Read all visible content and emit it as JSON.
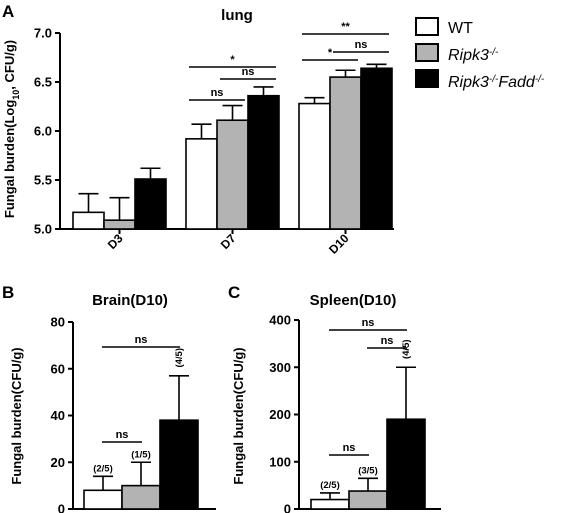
{
  "figure": {
    "panels": [
      "A",
      "B",
      "C"
    ],
    "legend": [
      {
        "name": "WT",
        "sup": [],
        "color": "#ffffff"
      },
      {
        "name": "Ripk3",
        "sup": [
          "-/-"
        ],
        "italic": true,
        "color": "#b3b3b3"
      },
      {
        "name": "Ripk3",
        "name2": "Fadd",
        "sup": [
          "-/-",
          "-/-"
        ],
        "italic": true,
        "color": "#000000"
      }
    ]
  },
  "chart_data": [
    {
      "panel": "A",
      "type": "bar",
      "title": "lung",
      "ylabel": "Fungal burden(Log10, CFU/g)",
      "ylabel_parts": [
        "Fungal burden(Log",
        "10",
        ", CFU/g)"
      ],
      "ylim": [
        5.0,
        7.0
      ],
      "yticks": [
        5.0,
        5.5,
        6.0,
        6.5,
        7.0
      ],
      "ytick_labels": [
        "5.0",
        "5.5",
        "6.0",
        "6.5",
        "7.0"
      ],
      "categories": [
        "D3",
        "D7",
        "D10"
      ],
      "series": [
        {
          "name": "WT",
          "values": [
            5.17,
            5.92,
            6.28
          ],
          "errors": [
            0.19,
            0.15,
            0.06
          ]
        },
        {
          "name": "Ripk3-/-",
          "values": [
            5.09,
            6.11,
            6.55
          ],
          "errors": [
            0.23,
            0.15,
            0.07
          ]
        },
        {
          "name": "Ripk3-/-Fadd-/-",
          "values": [
            5.51,
            6.36,
            6.64
          ],
          "errors": [
            0.11,
            0.09,
            0.04
          ]
        }
      ],
      "significance": [
        {
          "category": 1,
          "from": 0,
          "to": 2,
          "label": "*"
        },
        {
          "category": 1,
          "from": 0,
          "to": 1,
          "label": "ns"
        },
        {
          "category": 1,
          "from": 1,
          "to": 2,
          "label": "ns"
        },
        {
          "category": 2,
          "from": 0,
          "to": 2,
          "label": "**"
        },
        {
          "category": 2,
          "from": 0,
          "to": 1,
          "label": "*"
        },
        {
          "category": 2,
          "from": 1,
          "to": 2,
          "label": "ns"
        }
      ]
    },
    {
      "panel": "B",
      "type": "bar",
      "title": "Brain(D10)",
      "ylabel": "Fungal burden(CFU/g)",
      "ylim": [
        0,
        80
      ],
      "yticks": [
        0,
        20,
        40,
        60,
        80
      ],
      "ytick_labels": [
        "0",
        "20",
        "40",
        "60",
        "80"
      ],
      "series": [
        {
          "name": "WT",
          "value": 8,
          "error": 6,
          "annotation": "(2/5)"
        },
        {
          "name": "Ripk3-/-",
          "value": 10,
          "error": 10,
          "annotation": "(1/5)"
        },
        {
          "name": "Ripk3-/-Fadd-/-",
          "value": 38,
          "error": 19,
          "annotation": "(4/5)"
        }
      ],
      "significance": [
        {
          "from": 0,
          "to": 2,
          "label": "ns"
        },
        {
          "from": 0,
          "to": 1,
          "label": "ns"
        }
      ]
    },
    {
      "panel": "C",
      "type": "bar",
      "title": "Spleen(D10)",
      "ylabel": "Fungal burden(CFU/g)",
      "ylim": [
        0,
        400
      ],
      "yticks": [
        0,
        100,
        200,
        300,
        400
      ],
      "ytick_labels": [
        "0",
        "100",
        "200",
        "300",
        "400"
      ],
      "series": [
        {
          "name": "WT",
          "value": 20,
          "error": 14,
          "annotation": "(2/5)"
        },
        {
          "name": "Ripk3-/-",
          "value": 38,
          "error": 27,
          "annotation": "(3/5)"
        },
        {
          "name": "Ripk3-/-Fadd-/-",
          "value": 190,
          "error": 110,
          "annotation": "(4/5)"
        }
      ],
      "significance": [
        {
          "from": 0,
          "to": 2,
          "label": "ns"
        },
        {
          "from": 1,
          "to": 2,
          "label": "ns"
        },
        {
          "from": 0,
          "to": 1,
          "label": "ns"
        }
      ]
    }
  ]
}
